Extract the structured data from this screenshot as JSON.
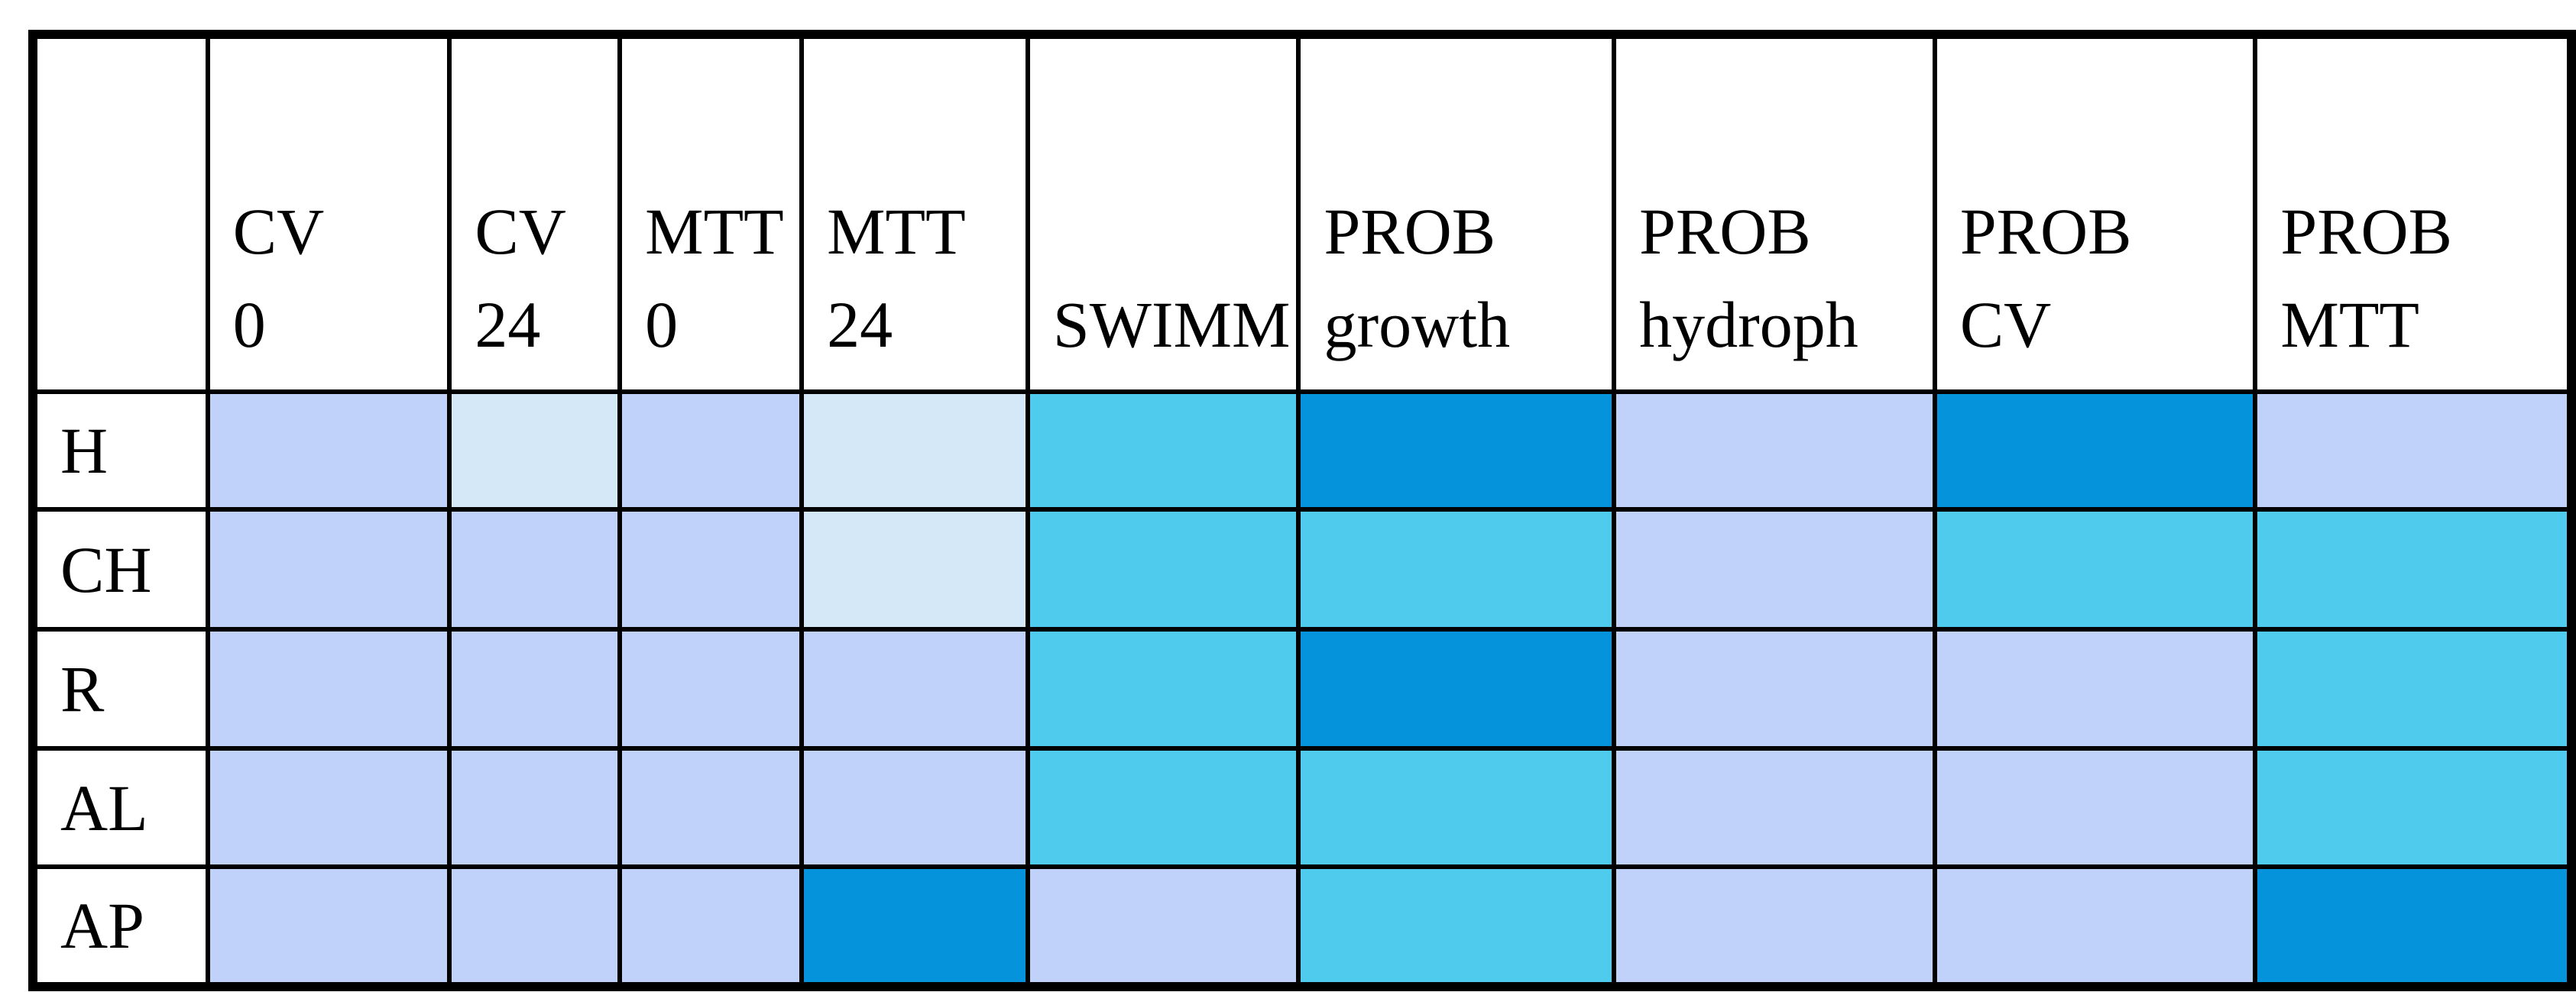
{
  "chart_data": {
    "type": "heatmap",
    "title": "",
    "columns": [
      "CV 0",
      "CV 24",
      "MTT 0",
      "MTT 24",
      "SWIMM",
      "PROB growth",
      "PROB hydroph",
      "PROB CV",
      "PROB MTT"
    ],
    "column_label_lines": [
      [
        "CV",
        "0"
      ],
      [
        "CV",
        "24"
      ],
      [
        "MTT",
        "0"
      ],
      [
        "MTT",
        "24"
      ],
      [
        "SWIMM"
      ],
      [
        "PROB",
        "growth"
      ],
      [
        "PROB",
        "hydroph"
      ],
      [
        "PROB",
        "CV"
      ],
      [
        "PROB",
        "MTT"
      ]
    ],
    "rows": [
      "H",
      "CH",
      "R",
      "AL",
      "AP"
    ],
    "values_intensity_level": [
      [
        2,
        1,
        2,
        1,
        3,
        4,
        2,
        4,
        2
      ],
      [
        2,
        2,
        2,
        1,
        3,
        3,
        2,
        3,
        3
      ],
      [
        2,
        2,
        2,
        2,
        3,
        4,
        2,
        2,
        3
      ],
      [
        2,
        2,
        2,
        2,
        3,
        3,
        2,
        2,
        3
      ],
      [
        2,
        2,
        2,
        4,
        2,
        3,
        2,
        2,
        4
      ]
    ],
    "intensity_palette": {
      "1": "#D4E8F7",
      "2": "#C0D2FA",
      "3": "#4FCBED",
      "4": "#0594DC"
    },
    "grid_color": "#000000",
    "legend_position": "none"
  }
}
